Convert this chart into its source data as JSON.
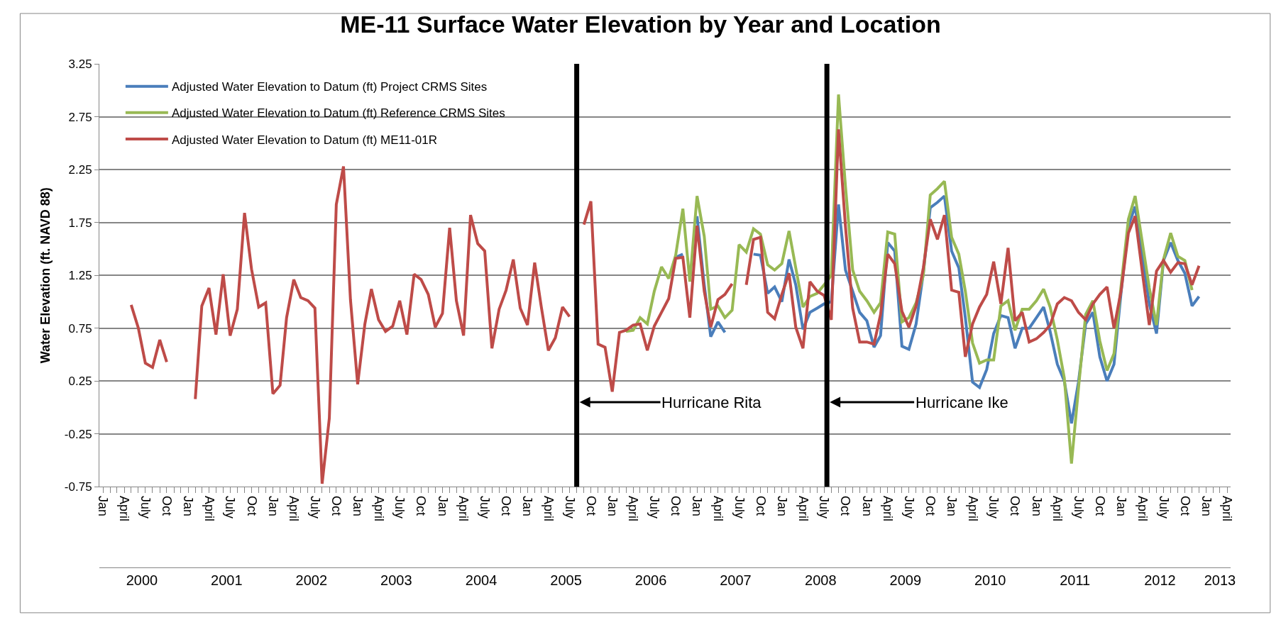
{
  "chart_data": {
    "type": "line",
    "title": "ME-11 Surface Water Elevation by Year and Location",
    "ylabel": "Water Elevation (ft. NAVD 88)",
    "x": [
      "2000-05",
      "2000-06",
      "2000-07",
      "2000-08",
      "2000-09",
      "2000-10",
      "2000-11",
      "2000-12",
      "2001-01",
      "2001-02",
      "2001-03",
      "2001-04",
      "2001-05",
      "2001-06",
      "2001-07",
      "2001-08",
      "2001-09",
      "2001-10",
      "2001-11",
      "2001-12",
      "2002-01",
      "2002-02",
      "2002-03",
      "2002-04",
      "2002-05",
      "2002-06",
      "2002-07",
      "2002-08",
      "2002-09",
      "2002-10",
      "2002-11",
      "2002-12",
      "2003-01",
      "2003-02",
      "2003-03",
      "2003-04",
      "2003-05",
      "2003-06",
      "2003-07",
      "2003-08",
      "2003-09",
      "2003-10",
      "2003-11",
      "2003-12",
      "2004-01",
      "2004-02",
      "2004-03",
      "2004-04",
      "2004-05",
      "2004-06",
      "2004-07",
      "2004-08",
      "2004-09",
      "2004-10",
      "2004-11",
      "2004-12",
      "2005-01",
      "2005-02",
      "2005-03",
      "2005-04",
      "2005-05",
      "2005-06",
      "2005-07",
      "2005-08",
      "2005-09",
      "2005-10",
      "2005-11",
      "2005-12",
      "2006-01",
      "2006-02",
      "2006-03",
      "2006-04",
      "2006-05",
      "2006-06",
      "2006-07",
      "2006-08",
      "2006-09",
      "2006-10",
      "2006-11",
      "2006-12",
      "2007-01",
      "2007-02",
      "2007-03",
      "2007-04",
      "2007-05",
      "2007-06",
      "2007-07",
      "2007-08",
      "2007-09",
      "2007-10",
      "2007-11",
      "2007-12",
      "2008-01",
      "2008-02",
      "2008-03",
      "2008-04",
      "2008-05",
      "2008-06",
      "2008-07",
      "2008-08",
      "2008-09",
      "2008-10",
      "2008-11",
      "2008-12",
      "2009-01",
      "2009-02",
      "2009-03",
      "2009-04",
      "2009-05",
      "2009-06",
      "2009-07",
      "2009-08",
      "2009-09",
      "2009-10",
      "2009-11",
      "2009-12",
      "2010-01",
      "2010-02",
      "2010-03",
      "2010-04",
      "2010-05",
      "2010-06",
      "2010-07",
      "2010-08",
      "2010-09",
      "2010-10",
      "2010-11",
      "2010-12",
      "2011-01",
      "2011-02",
      "2011-03",
      "2011-04",
      "2011-05",
      "2011-06",
      "2011-07",
      "2011-08",
      "2011-09",
      "2011-10",
      "2011-11",
      "2011-12",
      "2012-01",
      "2012-02",
      "2012-03",
      "2012-04",
      "2012-05",
      "2012-06",
      "2012-07",
      "2012-08",
      "2012-09",
      "2012-10",
      "2012-11",
      "2012-12"
    ],
    "series": [
      {
        "name": "Adjusted Water Elevation to Datum (ft) Project CRMS Sites",
        "color": "#4a7ebb",
        "values": [
          null,
          null,
          null,
          null,
          null,
          null,
          null,
          null,
          null,
          null,
          null,
          null,
          null,
          null,
          null,
          null,
          null,
          null,
          null,
          null,
          null,
          null,
          null,
          null,
          null,
          null,
          null,
          null,
          null,
          null,
          null,
          null,
          null,
          null,
          null,
          null,
          null,
          null,
          null,
          null,
          null,
          null,
          null,
          null,
          null,
          null,
          null,
          null,
          null,
          null,
          null,
          null,
          null,
          null,
          null,
          null,
          null,
          null,
          null,
          null,
          null,
          null,
          null,
          null,
          null,
          null,
          null,
          null,
          null,
          null,
          null,
          null,
          null,
          null,
          null,
          null,
          null,
          1.42,
          1.45,
          null,
          1.81,
          1.16,
          0.67,
          0.81,
          0.71,
          null,
          null,
          null,
          1.45,
          1.44,
          1.08,
          1.14,
          1.0,
          1.4,
          1.16,
          0.74,
          0.9,
          0.94,
          0.98,
          1.0,
          1.92,
          1.3,
          1.1,
          0.9,
          0.82,
          0.57,
          0.68,
          1.56,
          1.48,
          0.58,
          0.55,
          0.79,
          1.27,
          1.89,
          1.94,
          2.0,
          1.48,
          1.32,
          0.85,
          0.24,
          0.19,
          0.36,
          0.7,
          0.87,
          0.85,
          0.56,
          0.75,
          0.75,
          0.85,
          0.95,
          0.72,
          0.41,
          0.25,
          -0.15,
          0.24,
          0.79,
          0.9,
          0.48,
          0.25,
          0.41,
          1.1,
          1.72,
          1.9,
          1.44,
          0.98,
          0.7,
          1.39,
          1.56,
          1.39,
          1.27,
          0.96,
          1.05
        ]
      },
      {
        "name": "Adjusted Water Elevation to Datum (ft) Reference CRMS Sites",
        "color": "#98b954",
        "values": [
          null,
          null,
          null,
          null,
          null,
          null,
          null,
          null,
          null,
          null,
          null,
          null,
          null,
          null,
          null,
          null,
          null,
          null,
          null,
          null,
          null,
          null,
          null,
          null,
          null,
          null,
          null,
          null,
          null,
          null,
          null,
          null,
          null,
          null,
          null,
          null,
          null,
          null,
          null,
          null,
          null,
          null,
          null,
          null,
          null,
          null,
          null,
          null,
          null,
          null,
          null,
          null,
          null,
          null,
          null,
          null,
          null,
          null,
          null,
          null,
          null,
          null,
          null,
          null,
          null,
          null,
          null,
          null,
          null,
          null,
          0.72,
          0.73,
          0.85,
          0.79,
          1.1,
          1.33,
          1.22,
          1.44,
          1.88,
          1.19,
          2.0,
          1.62,
          0.93,
          0.96,
          0.85,
          0.92,
          1.54,
          1.47,
          1.69,
          1.64,
          1.35,
          1.3,
          1.36,
          1.67,
          1.32,
          0.95,
          1.05,
          1.08,
          1.16,
          1.25,
          2.96,
          2.09,
          1.3,
          1.1,
          1.01,
          0.9,
          0.99,
          1.66,
          1.64,
          0.81,
          0.85,
          0.99,
          1.25,
          2.01,
          2.07,
          2.14,
          1.61,
          1.45,
          1.1,
          0.61,
          0.42,
          0.45,
          0.45,
          0.96,
          1.01,
          0.73,
          0.93,
          0.93,
          1.01,
          1.12,
          0.95,
          0.64,
          0.28,
          -0.53,
          0.18,
          0.88,
          1.01,
          0.63,
          0.35,
          0.51,
          1.16,
          1.78,
          2.0,
          1.56,
          1.13,
          0.78,
          1.4,
          1.65,
          1.43,
          1.39,
          1.11,
          null
        ]
      },
      {
        "name": "Adjusted Water Elevation to Datum (ft) ME11-01R",
        "color": "#be4b48",
        "values": [
          0.97,
          0.75,
          0.42,
          0.38,
          0.64,
          0.43,
          null,
          null,
          null,
          0.08,
          0.96,
          1.13,
          0.69,
          1.26,
          0.68,
          0.93,
          1.84,
          1.31,
          0.95,
          0.99,
          0.13,
          0.21,
          0.85,
          1.21,
          1.04,
          1.01,
          0.94,
          -0.72,
          -0.1,
          1.92,
          2.28,
          1.02,
          0.22,
          0.79,
          1.12,
          0.83,
          0.72,
          0.77,
          1.01,
          0.69,
          1.26,
          1.21,
          1.07,
          0.76,
          0.89,
          1.7,
          1.01,
          0.68,
          1.82,
          1.55,
          1.48,
          0.56,
          0.93,
          1.11,
          1.4,
          0.94,
          0.78,
          1.37,
          0.96,
          0.54,
          0.66,
          0.95,
          0.86,
          null,
          1.73,
          1.95,
          0.6,
          0.57,
          0.15,
          0.71,
          0.73,
          0.78,
          0.79,
          0.54,
          0.77,
          0.9,
          1.03,
          1.41,
          1.42,
          0.85,
          1.72,
          1.1,
          0.76,
          1.02,
          1.07,
          1.17,
          null,
          1.16,
          1.59,
          1.61,
          0.9,
          0.84,
          1.07,
          1.27,
          0.76,
          0.56,
          1.19,
          1.1,
          1.06,
          0.83,
          2.63,
          1.71,
          0.94,
          0.62,
          0.62,
          0.6,
          0.88,
          1.45,
          1.36,
          0.91,
          0.76,
          0.96,
          1.32,
          1.78,
          1.59,
          1.82,
          1.11,
          1.09,
          0.48,
          0.79,
          0.95,
          1.07,
          1.38,
          0.98,
          1.51,
          0.82,
          0.9,
          0.62,
          0.65,
          0.71,
          0.78,
          0.98,
          1.04,
          1.01,
          0.9,
          0.83,
          0.98,
          1.07,
          1.14,
          0.75,
          1.11,
          1.65,
          1.81,
          1.28,
          0.78,
          1.29,
          1.39,
          1.28,
          1.37,
          1.36,
          1.16,
          1.34
        ]
      }
    ],
    "xlim": [
      "1999-12-16",
      "2013-04-16"
    ],
    "xticks": [
      {
        "value": "2000-01",
        "label": "Jan"
      },
      {
        "value": "2000-04",
        "label": "April"
      },
      {
        "value": "2000-07",
        "label": "July"
      },
      {
        "value": "2000-10",
        "label": "Oct"
      },
      {
        "value": "2001-01",
        "label": "Jan"
      },
      {
        "value": "2001-04",
        "label": "April"
      },
      {
        "value": "2001-07",
        "label": "July"
      },
      {
        "value": "2001-10",
        "label": "Oct"
      },
      {
        "value": "2002-01",
        "label": "Jan"
      },
      {
        "value": "2002-04",
        "label": "April"
      },
      {
        "value": "2002-07",
        "label": "July"
      },
      {
        "value": "2002-10",
        "label": "Oct"
      },
      {
        "value": "2003-01",
        "label": "Jan"
      },
      {
        "value": "2003-04",
        "label": "April"
      },
      {
        "value": "2003-07",
        "label": "July"
      },
      {
        "value": "2003-10",
        "label": "Oct"
      },
      {
        "value": "2004-01",
        "label": "Jan"
      },
      {
        "value": "2004-04",
        "label": "April"
      },
      {
        "value": "2004-07",
        "label": "July"
      },
      {
        "value": "2004-10",
        "label": "Oct"
      },
      {
        "value": "2005-01",
        "label": "Jan"
      },
      {
        "value": "2005-04",
        "label": "April"
      },
      {
        "value": "2005-07",
        "label": "July"
      },
      {
        "value": "2005-10",
        "label": "Oct"
      },
      {
        "value": "2006-01",
        "label": "Jan"
      },
      {
        "value": "2006-04",
        "label": "April"
      },
      {
        "value": "2006-07",
        "label": "July"
      },
      {
        "value": "2006-10",
        "label": "Oct"
      },
      {
        "value": "2007-01",
        "label": "Jan"
      },
      {
        "value": "2007-04",
        "label": "April"
      },
      {
        "value": "2007-07",
        "label": "July"
      },
      {
        "value": "2007-10",
        "label": "Oct"
      },
      {
        "value": "2008-01",
        "label": "Jan"
      },
      {
        "value": "2008-04",
        "label": "April"
      },
      {
        "value": "2008-07",
        "label": "July"
      },
      {
        "value": "2008-10",
        "label": "Oct"
      },
      {
        "value": "2009-01",
        "label": "Jan"
      },
      {
        "value": "2009-04",
        "label": "April"
      },
      {
        "value": "2009-07",
        "label": "July"
      },
      {
        "value": "2009-10",
        "label": "Oct"
      },
      {
        "value": "2010-01",
        "label": "Jan"
      },
      {
        "value": "2010-04",
        "label": "April"
      },
      {
        "value": "2010-07",
        "label": "July"
      },
      {
        "value": "2010-10",
        "label": "Oct"
      },
      {
        "value": "2011-01",
        "label": "Jan"
      },
      {
        "value": "2011-04",
        "label": "April"
      },
      {
        "value": "2011-07",
        "label": "July"
      },
      {
        "value": "2011-10",
        "label": "Oct"
      },
      {
        "value": "2012-01",
        "label": "Jan"
      },
      {
        "value": "2012-04",
        "label": "April"
      },
      {
        "value": "2012-07",
        "label": "July"
      },
      {
        "value": "2012-10",
        "label": "Oct"
      },
      {
        "value": "2013-01",
        "label": "Jan"
      },
      {
        "value": "2013-04",
        "label": "April"
      }
    ],
    "x2lim": [
      "1999-12-16",
      "2013-04-16"
    ],
    "x2ticks": [
      {
        "value": "2000-06-16",
        "label": "2000"
      },
      {
        "value": "2001-06-16",
        "label": "2001"
      },
      {
        "value": "2002-06-16",
        "label": "2002"
      },
      {
        "value": "2003-06-16",
        "label": "2003"
      },
      {
        "value": "2004-06-16",
        "label": "2004"
      },
      {
        "value": "2005-06-16",
        "label": "2005"
      },
      {
        "value": "2006-06-16",
        "label": "2006"
      },
      {
        "value": "2007-06-16",
        "label": "2007"
      },
      {
        "value": "2008-06-16",
        "label": "2008"
      },
      {
        "value": "2009-06-16",
        "label": "2009"
      },
      {
        "value": "2010-06-16",
        "label": "2010"
      },
      {
        "value": "2011-06-16",
        "label": "2011"
      },
      {
        "value": "2012-06-16",
        "label": "2012"
      },
      {
        "value": "2013-03-01",
        "label": "2013"
      }
    ],
    "ylim": [
      -0.75,
      3.25
    ],
    "yticks": [
      -0.75,
      -0.25,
      0.25,
      0.75,
      1.25,
      1.75,
      2.25,
      2.75,
      3.25
    ],
    "ref_lines": [
      {
        "axis": "x",
        "value": "2005-08",
        "label": "Hurricane Rita",
        "color": "#000000"
      },
      {
        "axis": "x",
        "value": "2008-07-13",
        "label": "Hurricane Ike",
        "color": "#000000"
      }
    ],
    "grid": "y",
    "legend": "top left",
    "line_style": "solid",
    "marker": "none"
  }
}
